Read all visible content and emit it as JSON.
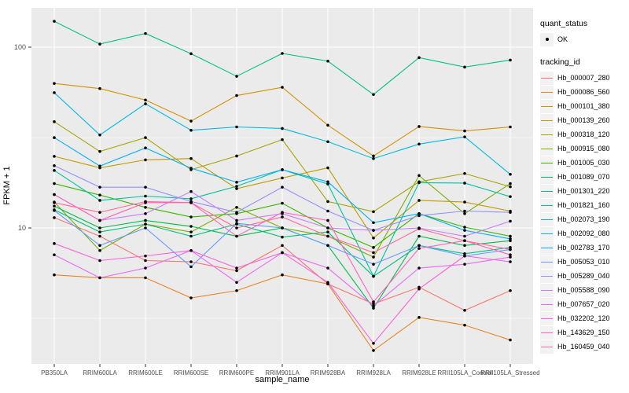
{
  "figure": {
    "y_axis_title": "FPKM + 1",
    "x_axis_title": "sample_name",
    "panel_bg": "#EBEBEB",
    "grid_color": "#FFFFFF",
    "tick_label_color": "#4D4D4D",
    "point_color": "#000000"
  },
  "legend": {
    "quant_status": {
      "title": "quant_status",
      "ok_label": "OK"
    },
    "tracking": {
      "title": "tracking_id"
    }
  },
  "chart_data": {
    "type": "line",
    "title": "",
    "xlabel": "sample_name",
    "ylabel": "FPKM + 1",
    "y_scale": "log10",
    "ylim": [
      1.77,
      165
    ],
    "y_major_ticks": [
      10,
      100
    ],
    "y_minor_ticks": [
      3.162,
      31.62
    ],
    "grid": true,
    "legend_position": "right",
    "categories": [
      "PB350LA",
      "RRIM600LA",
      "RRIM600LE",
      "RRIM600SE",
      "RRIM600PE",
      "RRIM901LA",
      "RRIM928BA",
      "RRIM928LA",
      "RRIM928LE",
      "RRII105LA_Control",
      "RRII105LA_Stressed"
    ],
    "series": [
      {
        "name": "Hb_000007_280",
        "color": "#F8766D",
        "values": [
          11.4,
          9.0,
          6.6,
          6.5,
          5.8,
          8.0,
          4.9,
          3.8,
          4.7,
          3.5,
          4.5
        ]
      },
      {
        "name": "Hb_000086_560",
        "color": "#E88526",
        "values": [
          5.5,
          5.3,
          5.3,
          4.1,
          4.5,
          5.5,
          4.9,
          2.1,
          3.2,
          2.9,
          2.4
        ]
      },
      {
        "name": "Hb_000101_380",
        "color": "#D39200",
        "values": [
          63,
          59,
          51,
          39,
          54,
          60,
          37,
          25,
          36.4,
          34.4,
          36.2
        ]
      },
      {
        "name": "Hb_000139_260",
        "color": "#BE9C00",
        "values": [
          24.9,
          21.5,
          23.8,
          24.2,
          16.5,
          18.9,
          21.5,
          8.8,
          14.2,
          13.9,
          12.4
        ]
      },
      {
        "name": "Hb_000318_120",
        "color": "#A3A500",
        "values": [
          38.7,
          26.5,
          31.6,
          21.0,
          25.0,
          30.8,
          14.0,
          12.3,
          18.0,
          20.0,
          16.9
        ]
      },
      {
        "name": "Hb_000915_080",
        "color": "#7CAE00",
        "values": [
          13.9,
          7.5,
          10.5,
          9.5,
          13.0,
          10.0,
          9.0,
          6.9,
          19.5,
          12.0,
          17.6
        ]
      },
      {
        "name": "Hb_001005_030",
        "color": "#39B600",
        "values": [
          17.6,
          15.2,
          13.0,
          11.5,
          12.0,
          13.7,
          10.0,
          7.8,
          12.0,
          10.1,
          9.0
        ]
      },
      {
        "name": "Hb_001089_070",
        "color": "#00BB4E",
        "values": [
          13.2,
          10.0,
          11.0,
          10.2,
          9.0,
          10.0,
          8.0,
          3.6,
          9.0,
          8.0,
          8.5
        ]
      },
      {
        "name": "Hb_001301_220",
        "color": "#00BF7D",
        "values": [
          12.6,
          9.5,
          10.5,
          9.0,
          10.5,
          8.9,
          9.5,
          5.4,
          8.0,
          7.2,
          7.8
        ]
      },
      {
        "name": "Hb_001821_160",
        "color": "#00C085",
        "values": [
          139,
          104,
          119,
          92,
          69,
          92.3,
          83.7,
          54.7,
          87.5,
          77.6,
          84.8
        ]
      },
      {
        "name": "Hb_002073_190",
        "color": "#00C1A3",
        "values": [
          20.8,
          14.2,
          15.0,
          14.5,
          17.0,
          21.0,
          17.5,
          5.4,
          17.8,
          17.7,
          14.9
        ]
      },
      {
        "name": "Hb_002092_080",
        "color": "#00BADE",
        "values": [
          56,
          32.7,
          48.6,
          34.7,
          36.2,
          35.5,
          30.0,
          24.2,
          29.1,
          31.9,
          19.8
        ]
      },
      {
        "name": "Hb_002783_170",
        "color": "#00B0F6",
        "values": [
          31.6,
          22.0,
          27.7,
          21.4,
          17.9,
          21.0,
          18.0,
          10.7,
          12.0,
          9.7,
          8.7
        ]
      },
      {
        "name": "Hb_005053_010",
        "color": "#619CFF",
        "values": [
          12.5,
          8.0,
          10.0,
          6.1,
          10.6,
          10.0,
          8.0,
          6.3,
          8.0,
          7.0,
          7.6
        ]
      },
      {
        "name": "Hb_005289_040",
        "color": "#9590FF",
        "values": [
          22.1,
          16.8,
          16.8,
          14.0,
          12.2,
          16.8,
          12.4,
          9.7,
          11.7,
          12.4,
          12.2
        ]
      },
      {
        "name": "Hb_005588_090",
        "color": "#C77CFF",
        "values": [
          15.3,
          11.0,
          12.0,
          15.9,
          11.0,
          12.0,
          10.0,
          9.7,
          10.0,
          9.0,
          10.9
        ]
      },
      {
        "name": "Hb_007657_020",
        "color": "#E76BF3",
        "values": [
          7.1,
          5.3,
          6.0,
          7.5,
          5.0,
          7.3,
          6.0,
          3.7,
          6.0,
          6.3,
          6.9
        ]
      },
      {
        "name": "Hb_032202_120",
        "color": "#FA62DB",
        "values": [
          8.2,
          6.6,
          7.0,
          7.5,
          6.0,
          7.3,
          5.0,
          2.3,
          4.6,
          7.0,
          6.5
        ]
      },
      {
        "name": "Hb_143629_150",
        "color": "#FF62BC",
        "values": [
          15.3,
          11.0,
          13.8,
          13.8,
          9.0,
          12.2,
          11.0,
          3.9,
          7.7,
          8.5,
          7.1
        ]
      },
      {
        "name": "Hb_160459_040",
        "color": "#FF6A98",
        "values": [
          13.8,
          12.2,
          14.0,
          13.8,
          10.0,
          11.5,
          9.0,
          7.3,
          9.9,
          8.5,
          7.6
        ]
      }
    ]
  }
}
